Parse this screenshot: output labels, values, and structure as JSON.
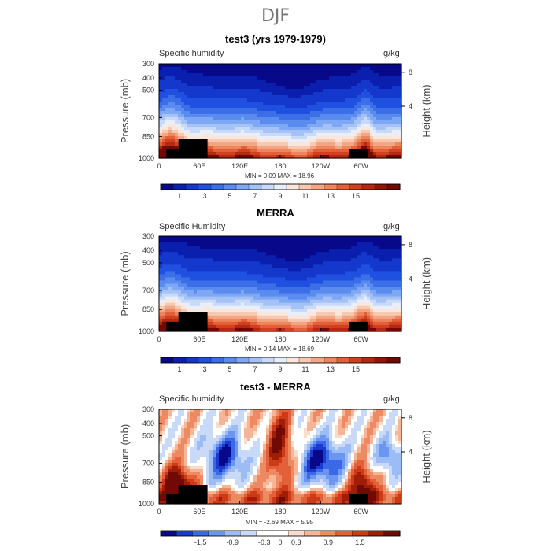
{
  "figure_title": "DJF",
  "panels": [
    {
      "title": "test3 (yrs 1979-1979)",
      "left_label": "Specific humidity",
      "units": "g/kg",
      "stats": "MIN =    0.09   MAX =   18.96"
    },
    {
      "title": "MERRA",
      "left_label": "Specific Humidity",
      "units": "g/kg",
      "stats": "MIN =    0.14   MAX =   18.69"
    },
    {
      "title": "test3 - MERRA",
      "left_label": "Specific humidity",
      "units": "g/kg",
      "stats": "MIN =   -2.69   MAX =    5.95"
    }
  ],
  "chart_data": [
    {
      "type": "heatmap",
      "title": "test3 (yrs 1979-1979)",
      "xlabel": "",
      "ylabel": "Pressure (mb)",
      "y2label": "Height (km)",
      "x_ticks": [
        "0",
        "60E",
        "120E",
        "180",
        "120W",
        "60W"
      ],
      "y_ticks": [
        "300",
        "400",
        "500",
        "700",
        "850",
        "1000"
      ],
      "y2_ticks": [
        "8",
        "4"
      ],
      "colorbar_labels": [
        "1",
        "3",
        "5",
        "7",
        "9",
        "11",
        "13",
        "15"
      ],
      "colorbar_levels": [
        0.5,
        1,
        2,
        3,
        4,
        5,
        6,
        7,
        8,
        9,
        10,
        11,
        12,
        13,
        14,
        15,
        16
      ],
      "min": 0.09,
      "max": 18.96
    },
    {
      "type": "heatmap",
      "title": "MERRA",
      "xlabel": "",
      "ylabel": "Pressure (mb)",
      "y2label": "Height (km)",
      "x_ticks": [
        "0",
        "60E",
        "120E",
        "180",
        "120W",
        "60W"
      ],
      "y_ticks": [
        "300",
        "400",
        "500",
        "700",
        "850",
        "1000"
      ],
      "y2_ticks": [
        "8",
        "4"
      ],
      "colorbar_labels": [
        "1",
        "3",
        "5",
        "7",
        "9",
        "11",
        "13",
        "15"
      ],
      "colorbar_levels": [
        0.5,
        1,
        2,
        3,
        4,
        5,
        6,
        7,
        8,
        9,
        10,
        11,
        12,
        13,
        14,
        15,
        16
      ],
      "min": 0.14,
      "max": 18.69
    },
    {
      "type": "heatmap",
      "title": "test3 - MERRA",
      "xlabel": "",
      "ylabel": "Pressure (mb)",
      "y2label": "Height (km)",
      "x_ticks": [
        "0",
        "60E",
        "120E",
        "180",
        "120W",
        "60W"
      ],
      "y_ticks": [
        "300",
        "400",
        "500",
        "700",
        "850",
        "1000"
      ],
      "y2_ticks": [
        "8",
        "4"
      ],
      "colorbar_labels": [
        "-1.5",
        "-0.9",
        "-0.3",
        "0",
        "0.3",
        "0.9",
        "1.5"
      ],
      "colorbar_levels": [
        -1.8,
        -1.5,
        -1.2,
        -0.9,
        -0.6,
        -0.3,
        -0.1,
        0,
        0.1,
        0.3,
        0.6,
        0.9,
        1.2,
        1.5,
        1.8
      ],
      "min": -2.69,
      "max": 5.95
    }
  ],
  "colors": {
    "seq_palette": [
      "#08088a",
      "#0a1fae",
      "#1438cc",
      "#2050e0",
      "#3c6ee8",
      "#5a8cf0",
      "#7ea8f4",
      "#a4c2f6",
      "#c8daf8",
      "#e9eefb",
      "#fbe6dc",
      "#f8c8b0",
      "#f3a683",
      "#ee855d",
      "#e2613a",
      "#d2411f",
      "#b6280f",
      "#921505",
      "#700a02"
    ],
    "div_palette": [
      "#08088a",
      "#1a3ad0",
      "#3a68e6",
      "#6a95f0",
      "#9cbcf5",
      "#c8daf8",
      "#ffffff",
      "#ffffff",
      "#fadccc",
      "#f5b596",
      "#ee8a62",
      "#e2613a",
      "#cc3a16",
      "#a01e08",
      "#700a02"
    ]
  }
}
